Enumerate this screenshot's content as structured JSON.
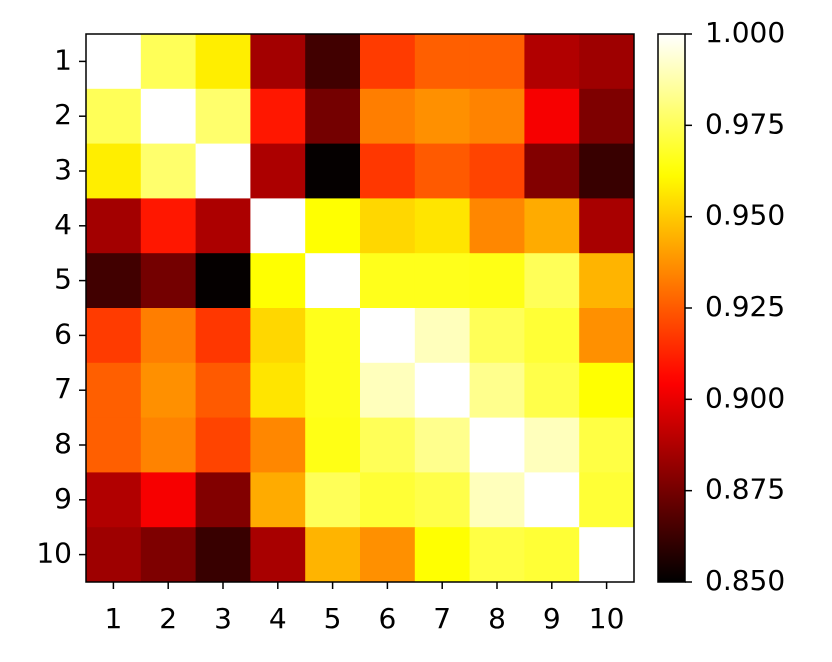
{
  "chart_data": {
    "type": "heatmap",
    "colormap": "hot",
    "x_categories": [
      "1",
      "2",
      "3",
      "4",
      "5",
      "6",
      "7",
      "8",
      "9",
      "10"
    ],
    "y_categories": [
      "1",
      "2",
      "3",
      "4",
      "5",
      "6",
      "7",
      "8",
      "9",
      "10"
    ],
    "values": [
      [
        1.0,
        0.975,
        0.958,
        0.885,
        0.864,
        0.918,
        0.926,
        0.926,
        0.888,
        0.884
      ],
      [
        0.975,
        1.0,
        0.978,
        0.91,
        0.875,
        0.933,
        0.937,
        0.934,
        0.903,
        0.877
      ],
      [
        0.958,
        0.978,
        1.0,
        0.887,
        0.851,
        0.917,
        0.925,
        0.92,
        0.878,
        0.862
      ],
      [
        0.885,
        0.91,
        0.887,
        1.0,
        0.962,
        0.953,
        0.956,
        0.935,
        0.943,
        0.886
      ],
      [
        0.864,
        0.875,
        0.851,
        0.962,
        1.0,
        0.966,
        0.966,
        0.965,
        0.975,
        0.945
      ],
      [
        0.918,
        0.933,
        0.917,
        0.953,
        0.966,
        1.0,
        0.99,
        0.975,
        0.97,
        0.937
      ],
      [
        0.926,
        0.937,
        0.925,
        0.956,
        0.966,
        0.99,
        1.0,
        0.983,
        0.973,
        0.962
      ],
      [
        0.926,
        0.934,
        0.92,
        0.935,
        0.965,
        0.975,
        0.983,
        1.0,
        0.99,
        0.972
      ],
      [
        0.888,
        0.903,
        0.878,
        0.943,
        0.975,
        0.97,
        0.973,
        0.99,
        1.0,
        0.97
      ],
      [
        0.884,
        0.877,
        0.862,
        0.886,
        0.945,
        0.937,
        0.962,
        0.972,
        0.97,
        1.0
      ]
    ],
    "zlim": [
      0.85,
      1.0
    ],
    "zticks": [
      {
        "value": 0.85,
        "label": "0.850"
      },
      {
        "value": 0.875,
        "label": "0.875"
      },
      {
        "value": 0.9,
        "label": "0.900"
      },
      {
        "value": 0.925,
        "label": "0.925"
      },
      {
        "value": 0.95,
        "label": "0.950"
      },
      {
        "value": 0.975,
        "label": "0.975"
      },
      {
        "value": 1.0,
        "label": "1.000"
      }
    ]
  }
}
